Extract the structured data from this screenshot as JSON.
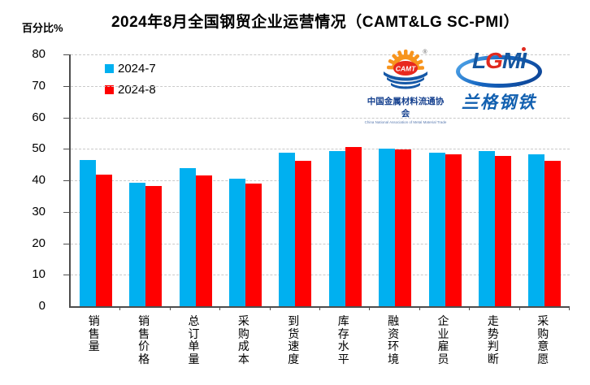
{
  "header": {
    "title": "2024年8月全国钢贸企业运营情况（CAMT&LG SC-PMI）",
    "y_axis_unit": "百分比%"
  },
  "legend": [
    {
      "label": "2024-7",
      "color": "#00b0f0"
    },
    {
      "label": "2024-8",
      "color": "#ff0000"
    }
  ],
  "logos": {
    "camt": {
      "abbr": "CAMT",
      "reg": "®",
      "name_cn": "中国金属材料流通协会",
      "name_en": "China National Association of Metal Material Trade",
      "sun_color": "#f7941d",
      "oval_color": "#e8281e",
      "wave_color": "#1558a7"
    },
    "lgmi": {
      "letters": [
        {
          "ch": "L",
          "color": "#1456a0"
        },
        {
          "ch": "G",
          "color": "#e02a1f"
        },
        {
          "ch": "M",
          "color": "#1456a0"
        },
        {
          "ch": "I",
          "color": "#1456a0"
        }
      ],
      "name_cn": "兰格钢铁"
    }
  },
  "chart_data": {
    "type": "bar",
    "title": "2024年8月全国钢贸企业运营情况（CAMT&LG SC-PMI）",
    "ylabel": "百分比%",
    "xlabel": "",
    "ylim": [
      0,
      80
    ],
    "ytick_step": 10,
    "grid": "horizontal dashed",
    "legend_position": "top-left inside plot",
    "categories": [
      "销售量",
      "销售价格",
      "总订单量",
      "采购成本",
      "到货速度",
      "库存水平",
      "融资环境",
      "企业雇员",
      "走势判断",
      "采购意愿"
    ],
    "series": [
      {
        "name": "2024-7",
        "color": "#00b0f0",
        "values": [
          46.4,
          39.2,
          44.0,
          40.5,
          48.9,
          49.4,
          50.0,
          48.7,
          49.4,
          48.2
        ]
      },
      {
        "name": "2024-8",
        "color": "#ff0000",
        "values": [
          41.7,
          38.3,
          41.6,
          38.9,
          46.3,
          50.6,
          49.7,
          48.2,
          47.8,
          46.1
        ]
      }
    ],
    "style": {
      "gridline_color": "#c9c9c9",
      "axis_color": "#4d4d4d"
    }
  }
}
